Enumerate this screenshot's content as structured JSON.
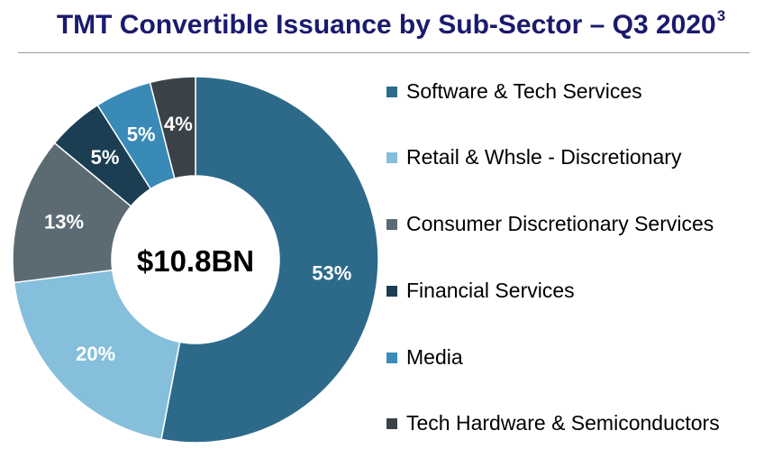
{
  "header": {
    "title": "TMT Convertible Issuance by Sub-Sector – Q3 2020",
    "title_superscript": "3"
  },
  "center_label": "$10.8BN",
  "chart_data": {
    "type": "pie",
    "title": "TMT Convertible Issuance by Sub-Sector – Q3 2020",
    "total_label": "$10.8BN",
    "legend_position": "right",
    "slices": [
      {
        "name": "Software & Tech Services",
        "value": 53,
        "label": "53%",
        "color": "#2d6a8a"
      },
      {
        "name": "Retail & Whsle - Discretionary",
        "value": 20,
        "label": "20%",
        "color": "#85bfdc"
      },
      {
        "name": "Consumer Discretionary Services",
        "value": 13,
        "label": "13%",
        "color": "#5c6b73"
      },
      {
        "name": "Financial Services",
        "value": 5,
        "label": "5%",
        "color": "#1b3e52"
      },
      {
        "name": "Media",
        "value": 5,
        "label": "5%",
        "color": "#3a8ab8"
      },
      {
        "name": "Tech Hardware & Semiconductors",
        "value": 4,
        "label": "4%",
        "color": "#3a4248"
      }
    ]
  }
}
